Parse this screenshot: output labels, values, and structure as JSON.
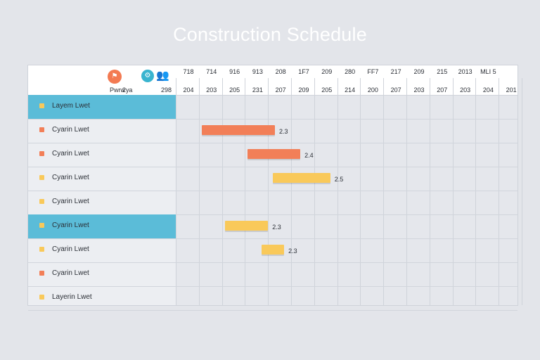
{
  "title": "Construction Schedule",
  "colors": {
    "orange": "#f27f58",
    "yellow": "#f9c95a",
    "highlight": "#5bbcd8",
    "icon_orange": "#f37a52",
    "icon_teal": "#39b4cf"
  },
  "header": {
    "icons": [
      "flag-icon",
      "gear-icon",
      "people-icon"
    ],
    "col1_label": "Pwrw ",
    "col2_label": "2уа",
    "col3_label": "298",
    "top_ticks": [
      "718",
      "714",
      "916",
      "913",
      "208",
      "1F7",
      "209",
      "280",
      "FF7",
      "217",
      "209",
      "215",
      "2013",
      "MLI 5"
    ],
    "bottom_ticks": [
      "204",
      "203",
      "205",
      "231",
      "207",
      "209",
      "205",
      "214",
      "200",
      "207",
      "203",
      "207",
      "203",
      "204",
      "201"
    ]
  },
  "rows": [
    {
      "label": "Layem Lwet",
      "bullet": "yellow",
      "highlight": true,
      "bar": null
    },
    {
      "label": "Cyarin Lwet",
      "bullet": "orange",
      "highlight": false,
      "bar": {
        "color": "orange",
        "start": 1,
        "end": 4.3,
        "value": "2.3"
      }
    },
    {
      "label": "Cyarin Lwet",
      "bullet": "orange",
      "highlight": false,
      "bar": {
        "color": "orange",
        "start": 3,
        "end": 5.4,
        "value": "2.4"
      }
    },
    {
      "label": "Cyarin Lwet",
      "bullet": "yellow",
      "highlight": false,
      "bar": {
        "color": "yellow",
        "start": 4.1,
        "end": 6.7,
        "value": "2.5"
      }
    },
    {
      "label": "Cyarin Lwet",
      "bullet": "yellow",
      "highlight": false,
      "bar": null
    },
    {
      "label": "Cyarin Lwet",
      "bullet": "yellow",
      "highlight": true,
      "bar": {
        "color": "yellow",
        "start": 2,
        "end": 4,
        "value": "2.3"
      }
    },
    {
      "label": "Cyarin Lwet",
      "bullet": "yellow",
      "highlight": false,
      "bar": {
        "color": "yellow",
        "start": 3.6,
        "end": 4.7,
        "value": "2.3"
      }
    },
    {
      "label": "Cyarin Lwet",
      "bullet": "orange",
      "highlight": false,
      "bar": null
    },
    {
      "label": "Layerin Lwet",
      "bullet": "yellow",
      "highlight": false,
      "bar": null
    }
  ]
}
